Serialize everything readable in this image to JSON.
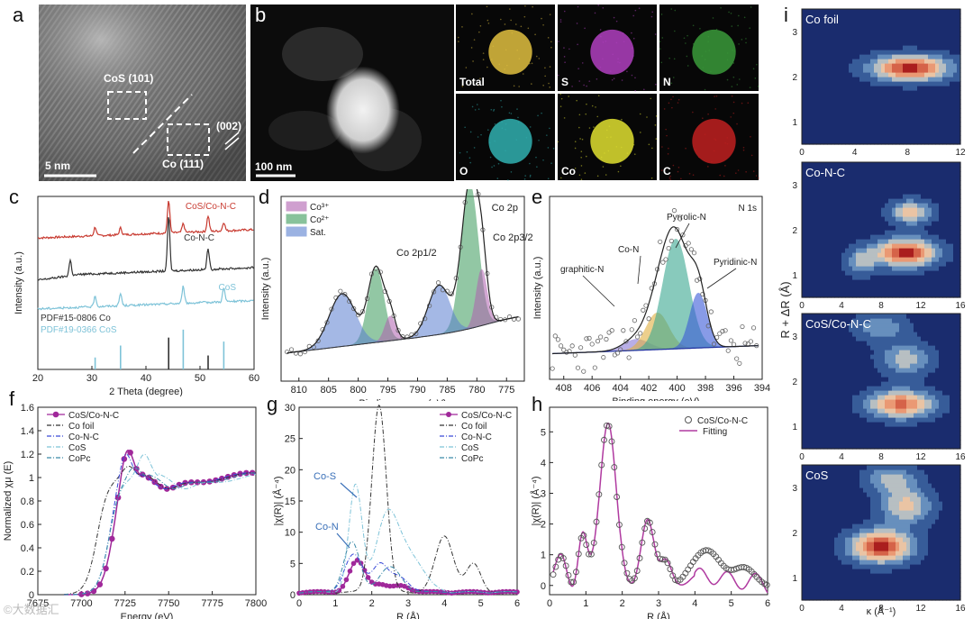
{
  "panels": {
    "a": {
      "letter": "a",
      "labels": [
        "CoS (101)",
        "(002)",
        "Co (111)"
      ],
      "scalebar": "5 nm"
    },
    "b": {
      "letter": "b",
      "scalebar": "100 nm",
      "maps": [
        {
          "label": "Total",
          "color": "#e0c040"
        },
        {
          "label": "S",
          "color": "#b040c0"
        },
        {
          "label": "N",
          "color": "#3a9a3a"
        },
        {
          "label": "O",
          "color": "#30b0b0"
        },
        {
          "label": "Co",
          "color": "#e0e030"
        },
        {
          "label": "C",
          "color": "#c02020"
        }
      ]
    },
    "c": {
      "letter": "c"
    },
    "d": {
      "letter": "d"
    },
    "e": {
      "letter": "e"
    },
    "f": {
      "letter": "f"
    },
    "g": {
      "letter": "g"
    },
    "h": {
      "letter": "h"
    },
    "i": {
      "letter": "i"
    }
  },
  "watermark": "©大数据汇",
  "chart_data": [
    {
      "id": "c",
      "type": "line",
      "xlabel": "2 Theta (degree)",
      "ylabel": "Intensity (a.u.)",
      "xlim": [
        20,
        60
      ],
      "xticks": [
        20,
        30,
        40,
        50,
        60
      ],
      "series": [
        {
          "name": "CoS/Co-N-C",
          "color": "#c83a30",
          "peaks": [
            30.6,
            35.3,
            44.2,
            46.9,
            51.5,
            54.4
          ]
        },
        {
          "name": "Co-N-C",
          "color": "#333333",
          "peaks": [
            26.0,
            44.2,
            51.5
          ]
        },
        {
          "name": "CoS",
          "color": "#7ec3d8",
          "peaks": [
            30.6,
            35.3,
            46.9,
            54.4
          ]
        }
      ],
      "references": [
        {
          "name": "PDF#15-0806 Co",
          "color": "#333333",
          "x": [
            44.2,
            51.5
          ],
          "h": [
            0.8,
            0.35
          ]
        },
        {
          "name": "PDF#19-0366 CoS",
          "color": "#7ec3d8",
          "x": [
            30.6,
            35.3,
            46.9,
            54.4
          ],
          "h": [
            0.3,
            0.6,
            1.0,
            0.7
          ]
        }
      ]
    },
    {
      "id": "d",
      "type": "line",
      "title": "Co 2p",
      "xlabel": "Binding energy (eV)",
      "ylabel": "Intensity (a.u.)",
      "xlim": [
        813,
        772
      ],
      "xticks": [
        810,
        805,
        800,
        795,
        790,
        785,
        780,
        775
      ],
      "legend": [
        "Co³⁺",
        "Co²⁺",
        "Sat."
      ],
      "annotations": [
        "Co 2p1/2",
        "Co 2p3/2"
      ],
      "components": [
        {
          "type": "Co²⁺",
          "center": 781.2,
          "height": 0.82,
          "width": 1.4,
          "color": "#3a9a5a"
        },
        {
          "type": "Co³⁺",
          "center": 779.2,
          "height": 0.32,
          "width": 0.9,
          "color": "#b060b0"
        },
        {
          "type": "Sat.",
          "center": 786.4,
          "height": 0.28,
          "width": 1.8,
          "color": "#5a7fd0"
        },
        {
          "type": "Co²⁺",
          "center": 797.0,
          "height": 0.42,
          "width": 1.3,
          "color": "#3a9a5a"
        },
        {
          "type": "Co³⁺",
          "center": 794.6,
          "height": 0.14,
          "width": 0.9,
          "color": "#b060b0"
        },
        {
          "type": "Sat.",
          "center": 802.7,
          "height": 0.3,
          "width": 2.2,
          "color": "#5a7fd0"
        }
      ]
    },
    {
      "id": "e",
      "type": "line",
      "title": "N 1s",
      "xlabel": "Binding energy (eV)",
      "ylabel": "Intensity (a.u.)",
      "xlim": [
        409,
        394
      ],
      "xticks": [
        408,
        406,
        404,
        402,
        400,
        398,
        396,
        394
      ],
      "components": [
        {
          "name": "graphitic-N",
          "center": 402.9,
          "height": 0.06,
          "width": 0.9,
          "color": "#8a7ad8"
        },
        {
          "name": "Co-N",
          "center": 401.4,
          "height": 0.2,
          "width": 0.8,
          "color": "#e0b040"
        },
        {
          "name": "Pyrrolic-N",
          "center": 400.1,
          "height": 0.6,
          "width": 0.9,
          "color": "#3aa890"
        },
        {
          "name": "Pyridinic-N",
          "center": 398.5,
          "height": 0.3,
          "width": 0.6,
          "color": "#3a5ad8"
        }
      ]
    },
    {
      "id": "f",
      "type": "line",
      "xlabel": "Energy (eV)",
      "ylabel": "Normalized χμ (E)",
      "xlim": [
        7675,
        7800
      ],
      "ylim": [
        0,
        1.6
      ],
      "xticks": [
        7675,
        7700,
        7725,
        7750,
        7775,
        7800
      ],
      "yticks": [
        0,
        0.2,
        0.4,
        0.6,
        0.8,
        1.0,
        1.2,
        1.4,
        1.6
      ],
      "series": [
        {
          "name": "CoS/Co-N-C",
          "color": "#a0289a",
          "style": "marker",
          "edge": 7718,
          "white": 1.3,
          "whiteX": 7726
        },
        {
          "name": "Co foil",
          "color": "#333333",
          "style": "dashdot",
          "edge": 7709,
          "white": 1.1,
          "whiteX": 7727
        },
        {
          "name": "Co-N-C",
          "color": "#3a4ad8",
          "style": "dashdot",
          "edge": 7716,
          "white": 1.25,
          "whiteX": 7725
        },
        {
          "name": "CoS",
          "color": "#7ec3d8",
          "style": "dashdot",
          "edge": 7716,
          "white": 1.2,
          "whiteX": 7736
        },
        {
          "name": "CoPc",
          "color": "#3a8aa8",
          "style": "dashdot",
          "edge": 7716,
          "white": 1.1,
          "whiteX": 7730
        }
      ]
    },
    {
      "id": "g",
      "type": "line",
      "xlabel": "R (Å)",
      "ylabel": "|χ(R)| (Å⁻⁴)",
      "xlim": [
        0,
        6
      ],
      "ylim": [
        0,
        30
      ],
      "xticks": [
        0,
        1,
        2,
        3,
        4,
        5,
        6
      ],
      "yticks": [
        0,
        5,
        10,
        15,
        20,
        25,
        30
      ],
      "annotations": [
        "Co-S",
        "Co-N"
      ],
      "series": [
        {
          "name": "CoS/Co-N-C",
          "color": "#a0289a",
          "style": "marker",
          "peaks": [
            [
              1.6,
              5.0,
              0.22
            ],
            [
              2.2,
              1.2,
              0.2
            ],
            [
              2.8,
              1.0,
              0.25
            ]
          ]
        },
        {
          "name": "Co foil",
          "color": "#333333",
          "style": "dashdot",
          "peaks": [
            [
              2.2,
              30.0,
              0.2
            ],
            [
              4.0,
              9.0,
              0.25
            ],
            [
              4.8,
              4.5,
              0.2
            ]
          ]
        },
        {
          "name": "Co-N-C",
          "color": "#3a4ad8",
          "style": "dashdot",
          "peaks": [
            [
              1.5,
              6.0,
              0.25
            ],
            [
              2.2,
              4.0,
              0.2
            ],
            [
              2.7,
              2.5,
              0.3
            ]
          ]
        },
        {
          "name": "CoS",
          "color": "#7ec3d8",
          "style": "dashdot",
          "peaks": [
            [
              1.55,
              17.0,
              0.18
            ],
            [
              2.4,
              11.0,
              0.3
            ],
            [
              3.0,
              6.0,
              0.4
            ]
          ]
        },
        {
          "name": "CoPc",
          "color": "#3a8aa8",
          "style": "dashdot",
          "peaks": [
            [
              1.45,
              8.0,
              0.22
            ],
            [
              2.5,
              4.0,
              0.3
            ]
          ]
        }
      ]
    },
    {
      "id": "h",
      "type": "line",
      "xlabel": "R (Å)",
      "ylabel": "|χ(R)| (Å⁻⁴)",
      "xlim": [
        0,
        6
      ],
      "ylim": [
        -0.3,
        5.8
      ],
      "xticks": [
        0,
        1,
        2,
        3,
        4,
        5,
        6
      ],
      "yticks": [
        0,
        1,
        2,
        3,
        4,
        5
      ],
      "series": [
        {
          "name": "CoS/Co-N-C",
          "color": "#555555",
          "style": "open-circle"
        },
        {
          "name": "Fitting",
          "color": "#b03aa0",
          "style": "line"
        }
      ],
      "peaks": [
        [
          0.35,
          0.8,
          0.15
        ],
        [
          0.9,
          1.6,
          0.12
        ],
        [
          1.6,
          5.4,
          0.22
        ],
        [
          2.7,
          2.1,
          0.18
        ],
        [
          3.2,
          0.8,
          0.15
        ],
        [
          4.3,
          1.2,
          0.35
        ],
        [
          5.3,
          0.6,
          0.3
        ]
      ]
    },
    {
      "id": "i",
      "type": "heatmap",
      "xlabel": "κ (Å⁻¹)",
      "ylabel": "R + ΔR (Å)",
      "panels": [
        {
          "name": "Co foil",
          "xlim": [
            0,
            12
          ],
          "ylim": [
            0.5,
            3.5
          ],
          "xticks": [
            0,
            4,
            8,
            12
          ],
          "yticks": [
            1,
            2,
            3
          ],
          "blobs": [
            [
              8.2,
              2.2,
              2.8,
              0.28,
              1.0
            ]
          ]
        },
        {
          "name": "Co-N-C",
          "xlim": [
            0,
            16
          ],
          "ylim": [
            0.5,
            3.5
          ],
          "xticks": [
            0,
            4,
            8,
            12,
            16
          ],
          "yticks": [
            1,
            2,
            3
          ],
          "blobs": [
            [
              10.5,
              1.5,
              3.0,
              0.3,
              1.0
            ],
            [
              11.0,
              2.4,
              2.0,
              0.25,
              0.6
            ],
            [
              6.0,
              1.3,
              1.5,
              0.3,
              0.4
            ]
          ]
        },
        {
          "name": "CoS/Co-N-C",
          "xlim": [
            0,
            16
          ],
          "ylim": [
            0.5,
            3.5
          ],
          "xticks": [
            0,
            4,
            8,
            12,
            16
          ],
          "yticks": [
            1,
            2,
            3
          ],
          "blobs": [
            [
              10.0,
              1.5,
              3.2,
              0.3,
              0.85
            ],
            [
              10.5,
              2.5,
              2.5,
              0.35,
              0.45
            ],
            [
              8.0,
              3.2,
              2.5,
              0.3,
              0.35
            ]
          ]
        },
        {
          "name": "CoS",
          "xlim": [
            0,
            16
          ],
          "ylim": [
            0.5,
            3.5
          ],
          "xticks": [
            0,
            4,
            8,
            12,
            16
          ],
          "yticks": [
            1,
            2,
            3
          ],
          "blobs": [
            [
              8.0,
              1.7,
              3.0,
              0.35,
              1.0
            ],
            [
              10.5,
              2.6,
              2.5,
              0.4,
              0.55
            ],
            [
              9.0,
              3.2,
              2.5,
              0.3,
              0.4
            ]
          ]
        }
      ]
    }
  ]
}
